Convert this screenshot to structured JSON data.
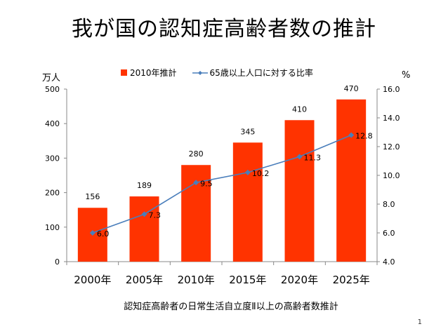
{
  "slide": {
    "title": "我が国の認知症高齢者数の推計",
    "caption": "認知症高齢者の日常生活自立度Ⅱ以上の高齢者数推計",
    "page_number": "1"
  },
  "chart_data": {
    "type": "bar",
    "categories": [
      "2000年",
      "2005年",
      "2010年",
      "2015年",
      "2020年",
      "2025年"
    ],
    "series": [
      {
        "name": "2010年推計",
        "type": "bar",
        "axis": "left",
        "values": [
          156,
          189,
          280,
          345,
          410,
          470
        ],
        "color": "#ff3300"
      },
      {
        "name": "65歳以上人口に対する比率",
        "type": "line",
        "axis": "right",
        "values": [
          6.0,
          7.3,
          9.5,
          10.2,
          11.3,
          12.8
        ],
        "color": "#4a7ebb"
      }
    ],
    "left_axis": {
      "unit": "万人",
      "range": [
        0,
        500
      ],
      "ticks": [
        "0",
        "100",
        "200",
        "300",
        "400",
        "500"
      ]
    },
    "right_axis": {
      "unit": "%",
      "range": [
        4.0,
        16.0
      ],
      "ticks": [
        "4.0",
        "6.0",
        "8.0",
        "10.0",
        "12.0",
        "14.0",
        "16.0"
      ]
    },
    "bar_labels": [
      "156",
      "189",
      "280",
      "345",
      "410",
      "470"
    ],
    "line_labels": [
      "6.0",
      "7.3",
      "9.5",
      "10.2",
      "11.3",
      "12.8"
    ],
    "legend_position": "top",
    "grid": false
  }
}
